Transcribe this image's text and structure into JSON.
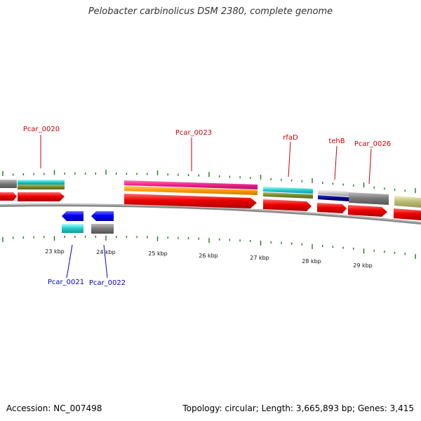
{
  "title": "Pelobacter carbinolicus DSM 2380, complete genome",
  "footer": {
    "accession": "Accession: NC_007498",
    "topology": "Topology: circular; Length: 3,665,893 bp; Genes: 3,415"
  },
  "colors": {
    "forward_label": "#cc0000",
    "reverse_label": "#0000cc",
    "backbone": "#888888",
    "tick": "#1a7a1a",
    "cds_forward": "#ee0000",
    "cds_reverse": "#0000ee",
    "cyan": "#22cccc",
    "olive": "#778833",
    "magenta": "#ee2288",
    "orange": "#ff9900",
    "gray": "#777777",
    "navy": "#000088",
    "silver": "#cccccc",
    "khaki": "#bbbb77"
  },
  "scale_labels": [
    {
      "id": "kbp-23",
      "text": "23 kbp",
      "kbp": 23
    },
    {
      "id": "kbp-24",
      "text": "24 kbp",
      "kbp": 24
    },
    {
      "id": "kbp-25",
      "text": "25 kbp",
      "kbp": 25
    },
    {
      "id": "kbp-26",
      "text": "26 kbp",
      "kbp": 26
    },
    {
      "id": "kbp-27",
      "text": "27 kbp",
      "kbp": 27
    },
    {
      "id": "kbp-28",
      "text": "28 kbp",
      "kbp": 28
    },
    {
      "id": "kbp-29",
      "text": "29 kbp",
      "kbp": 29
    }
  ],
  "gene_labels": [
    {
      "id": "Pcar_0020",
      "text": "Pcar_0020",
      "strand": "forward"
    },
    {
      "id": "Pcar_0023",
      "text": "Pcar_0023",
      "strand": "forward"
    },
    {
      "id": "rfaD",
      "text": "rfaD",
      "strand": "forward"
    },
    {
      "id": "tehB",
      "text": "tehB",
      "strand": "forward"
    },
    {
      "id": "Pcar_0026",
      "text": "Pcar_0026",
      "strand": "forward"
    },
    {
      "id": "Pcar_0021",
      "text": "Pcar_0021",
      "strand": "reverse"
    },
    {
      "id": "Pcar_0022",
      "text": "Pcar_0022",
      "strand": "reverse"
    }
  ]
}
